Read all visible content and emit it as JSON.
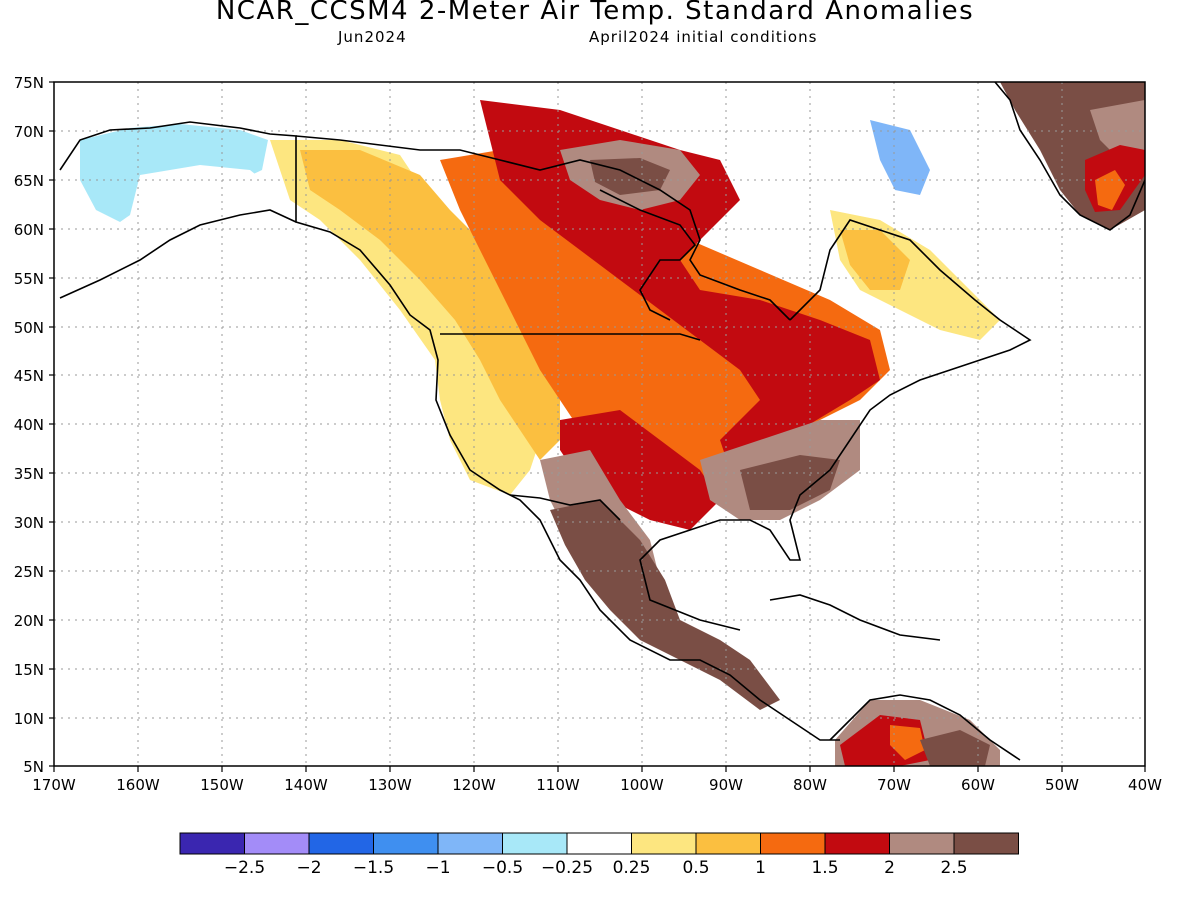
{
  "title": "NCAR_CCSM4 2-Meter Air Temp. Standard Anomalies",
  "subtitle_left": "Jun2024",
  "subtitle_right": "April2024 initial conditions",
  "lat_labels": [
    "75N",
    "70N",
    "65N",
    "60N",
    "55N",
    "50N",
    "45N",
    "40N",
    "35N",
    "30N",
    "25N",
    "20N",
    "15N",
    "10N",
    "5N"
  ],
  "lon_labels": [
    "170W",
    "160W",
    "150W",
    "140W",
    "130W",
    "120W",
    "110W",
    "100W",
    "90W",
    "80W",
    "70W",
    "60W",
    "50W",
    "40W"
  ],
  "colorbar": {
    "colors": [
      "#3a26b0",
      "#a38cf8",
      "#2266e6",
      "#3f8ff0",
      "#7fb6f8",
      "#a8e8f8",
      "#ffffff",
      "#fde680",
      "#fbbf40",
      "#f56a10",
      "#c20a10",
      "#b08a80",
      "#7a4e45"
    ],
    "labels": [
      "−2.5",
      "−2",
      "−1.5",
      "−1",
      "−0.5",
      "−0.25",
      "0.25",
      "0.5",
      "1",
      "1.5",
      "2",
      "2.5"
    ]
  },
  "colors": {
    "land_outline": "#000000",
    "frame": "#000000",
    "grid": "#999999"
  }
}
